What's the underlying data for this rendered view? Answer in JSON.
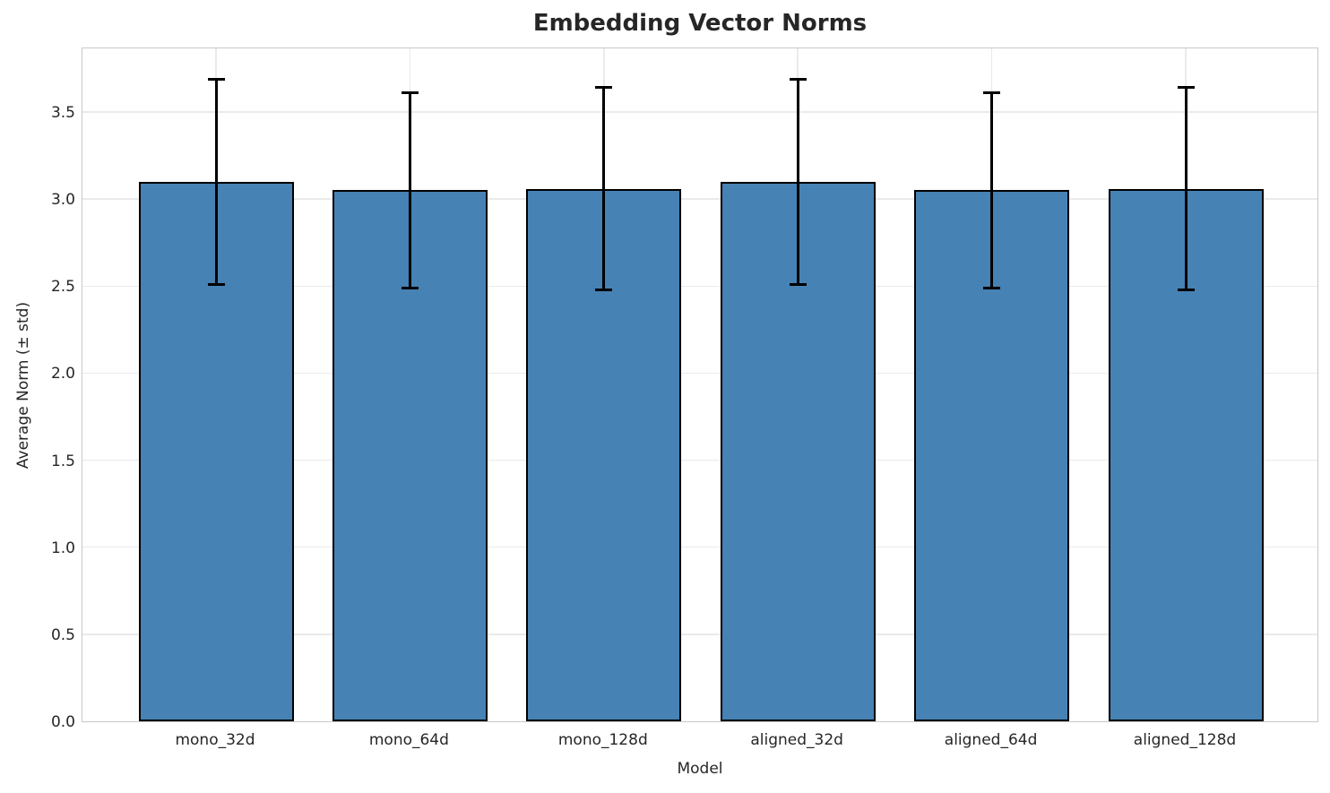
{
  "title": "Embedding Vector Norms",
  "chart_data": {
    "type": "bar",
    "title": "Embedding Vector Norms",
    "xlabel": "Model",
    "ylabel": "Average Norm (± std)",
    "categories": [
      "mono_32d",
      "mono_64d",
      "mono_128d",
      "aligned_32d",
      "aligned_64d",
      "aligned_128d"
    ],
    "values": [
      3.1,
      3.05,
      3.06,
      3.1,
      3.05,
      3.06
    ],
    "errors": [
      0.59,
      0.56,
      0.58,
      0.59,
      0.56,
      0.58
    ],
    "ylim": [
      0,
      3.876
    ],
    "yticks": [
      0.0,
      0.5,
      1.0,
      1.5,
      2.0,
      2.5,
      3.0,
      3.5
    ],
    "ytick_labels": [
      "0.0",
      "0.5",
      "1.0",
      "1.5",
      "2.0",
      "2.5",
      "3.0",
      "3.5"
    ],
    "grid": true,
    "legend": "none",
    "bar_color": "#4682b4",
    "bar_edge_color": "#000000",
    "error_color": "#000000"
  }
}
